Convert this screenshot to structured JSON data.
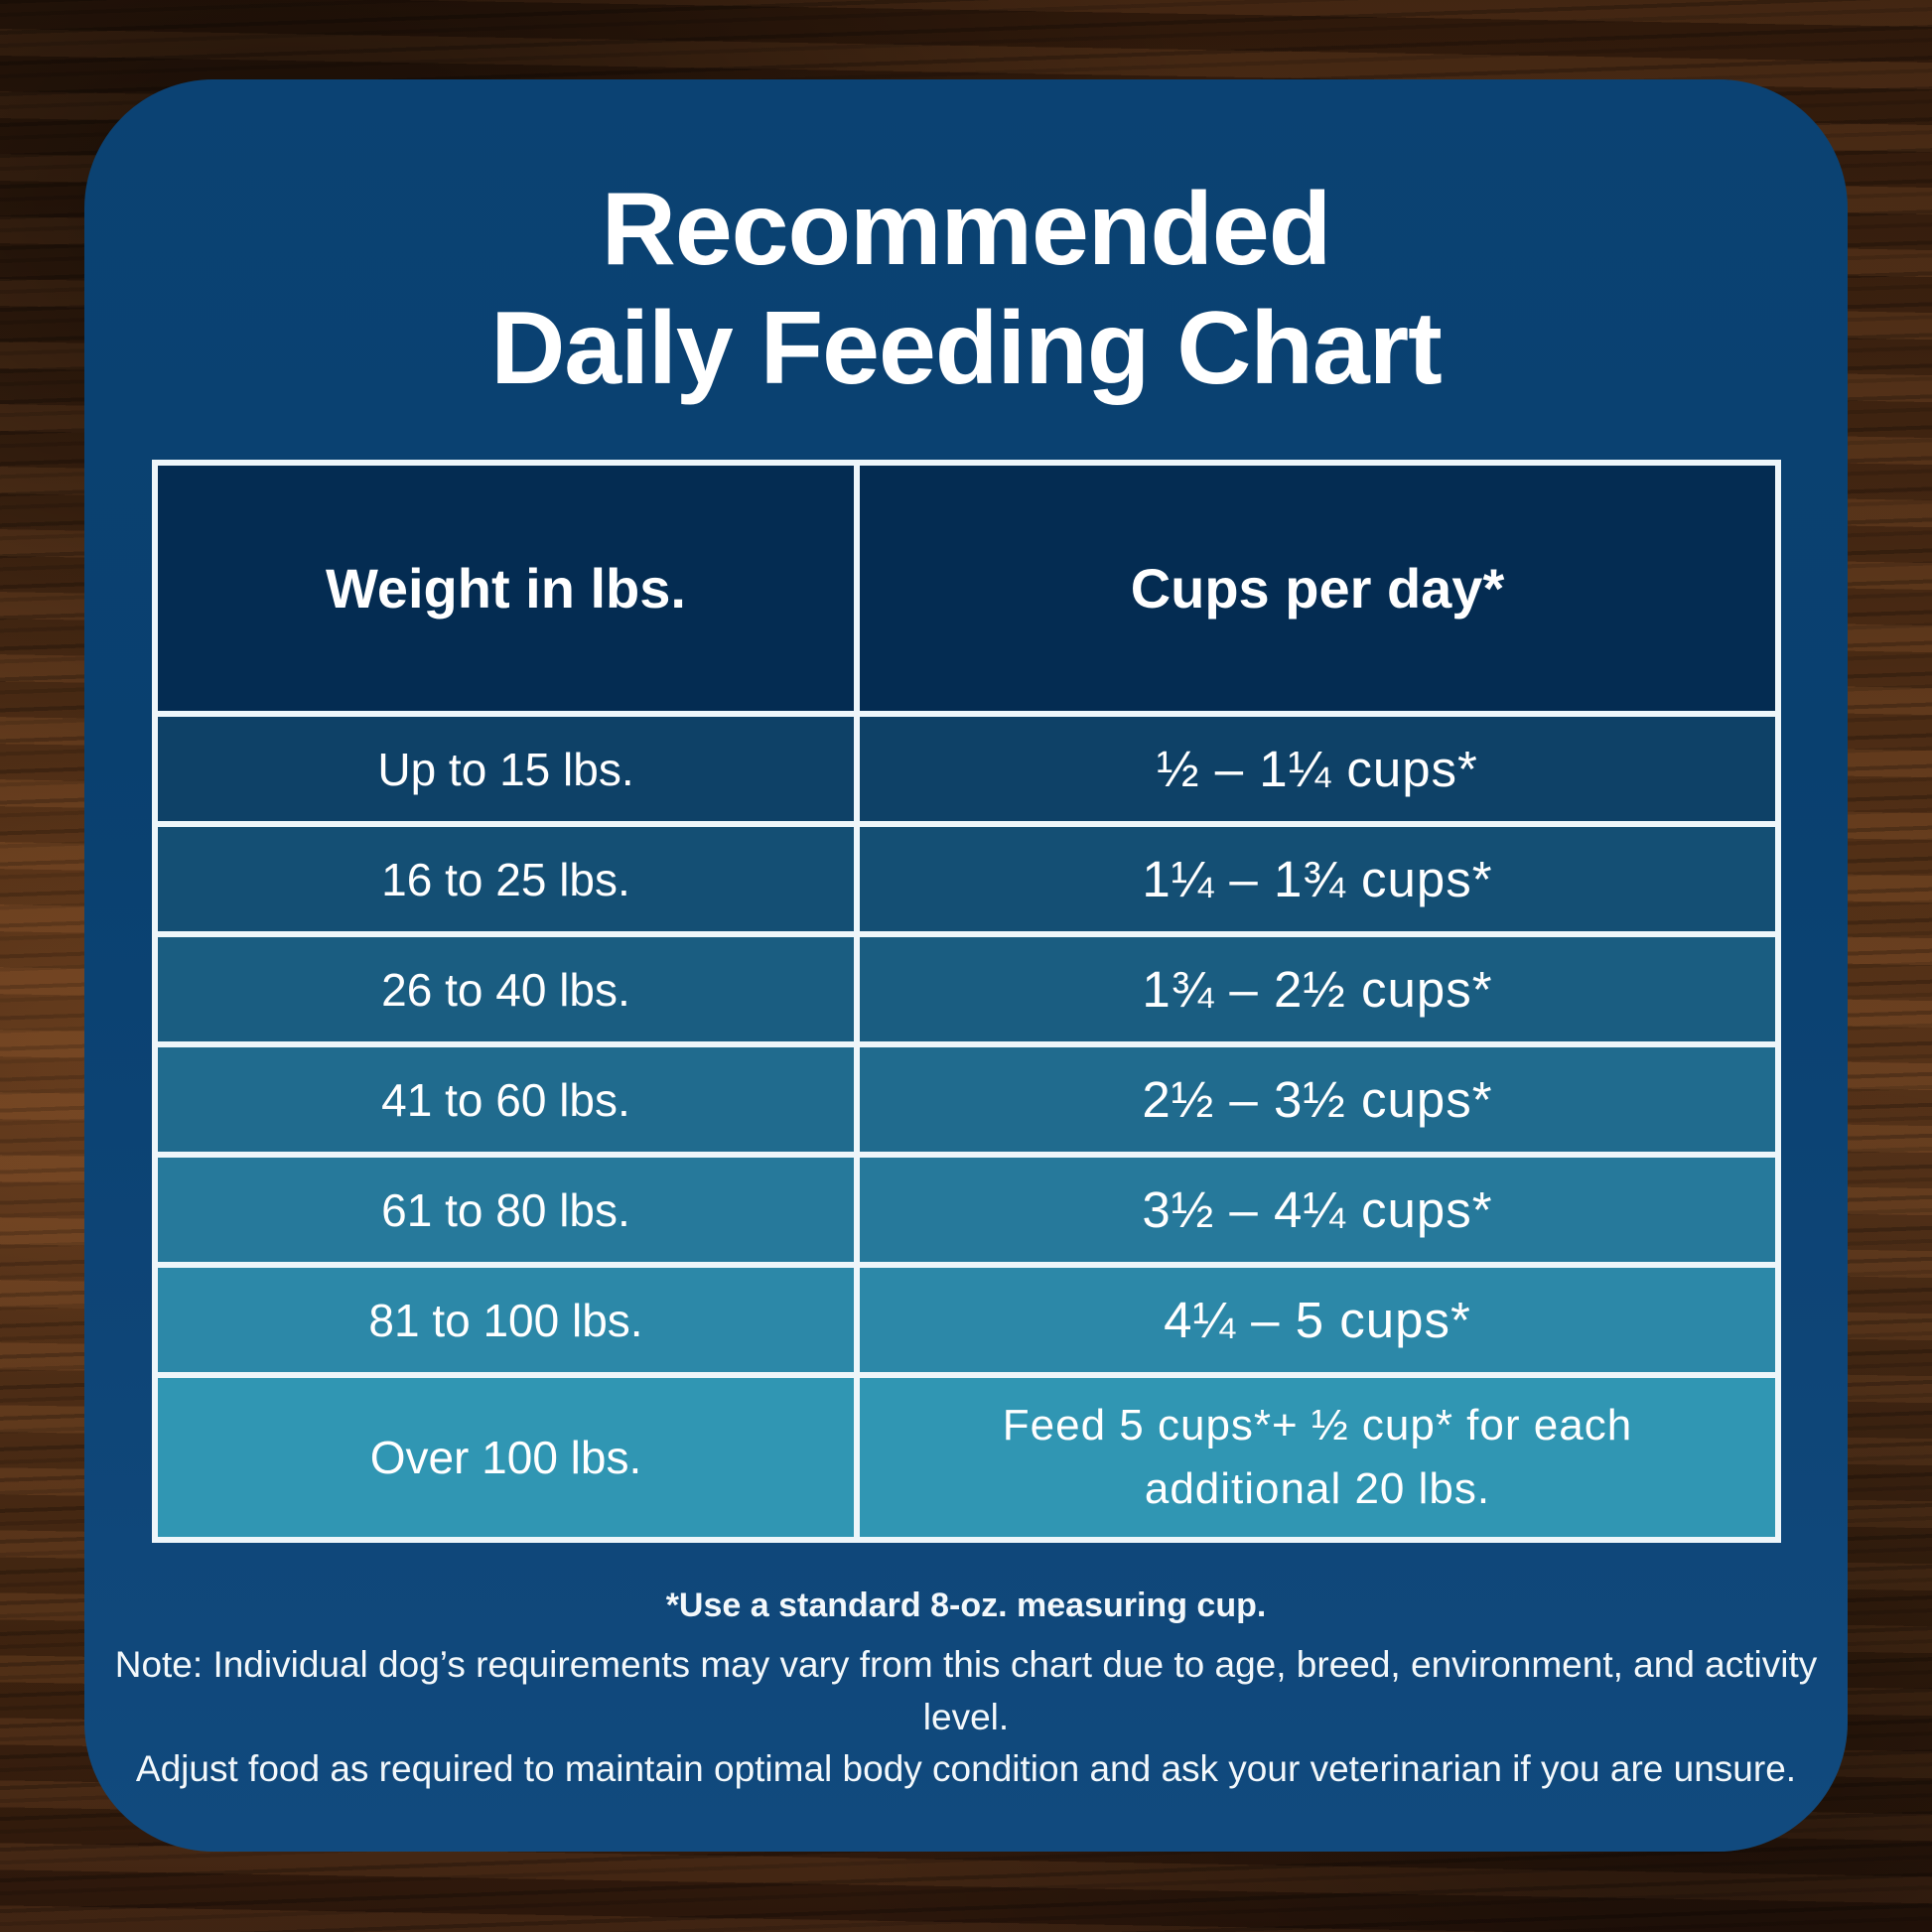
{
  "title": {
    "line1": "Recommended",
    "line2": "Daily Feeding Chart"
  },
  "table": {
    "headers": [
      "Weight in lbs.",
      "Cups per day*"
    ],
    "header_color": "#042c52",
    "row_colors": [
      "#0e4167",
      "#144f74",
      "#1a5d81",
      "#206b8e",
      "#26799b",
      "#2c88a8",
      "#3096b3"
    ],
    "rows": [
      {
        "weight": "Up to 15 lbs.",
        "cups": "½ – 1¼ cups*"
      },
      {
        "weight": "16 to 25 lbs.",
        "cups": "1¼ – 1¾ cups*"
      },
      {
        "weight": "26 to 40 lbs.",
        "cups": "1¾ – 2½ cups*"
      },
      {
        "weight": "41 to 60 lbs.",
        "cups": "2½ – 3½ cups*"
      },
      {
        "weight": "61 to 80 lbs.",
        "cups": "3½ – 4¼ cups*"
      },
      {
        "weight": "81 to 100 lbs.",
        "cups": "4¼ – 5 cups*"
      },
      {
        "weight": "Over 100 lbs.",
        "cups": "Feed 5 cups*+ ½ cup* for each additional 20 lbs."
      }
    ]
  },
  "footnotes": {
    "bold": "*Use a standard 8-oz. measuring cup.",
    "line1": "Note: Individual dog’s requirements may vary from this chart due to age, breed, environment, and activity level.",
    "line2": "Adjust food as required to maintain optimal body condition and ask your veterinarian if you are unsure."
  },
  "colors": {
    "card_background": "#0b4273",
    "grid_border": "#eef6fa",
    "text": "#ffffff",
    "wood_dark": "#2b170a",
    "wood_mid": "#5a3519"
  },
  "chart_data": {
    "type": "table",
    "title": "Recommended Daily Feeding Chart",
    "columns": [
      "Weight in lbs.",
      "Cups per day*"
    ],
    "rows": [
      [
        "Up to 15 lbs.",
        "½ – 1¼ cups*"
      ],
      [
        "16 to 25 lbs.",
        "1¼ – 1¾ cups*"
      ],
      [
        "26 to 40 lbs.",
        "1¾ – 2½ cups*"
      ],
      [
        "41 to 60 lbs.",
        "2½ – 3½ cups*"
      ],
      [
        "61 to 80 lbs.",
        "3½ – 4¼ cups*"
      ],
      [
        "81 to 100 lbs.",
        "4¼ – 5 cups*"
      ],
      [
        "Over 100 lbs.",
        "Feed 5 cups*+ ½ cup* for each additional 20 lbs."
      ]
    ],
    "footnotes": [
      "*Use a standard 8-oz. measuring cup.",
      "Note: Individual dog’s requirements may vary from this chart due to age, breed, environment, and activity level.",
      "Adjust food as required to maintain optimal body condition and ask your veterinarian if you are unsure."
    ]
  }
}
